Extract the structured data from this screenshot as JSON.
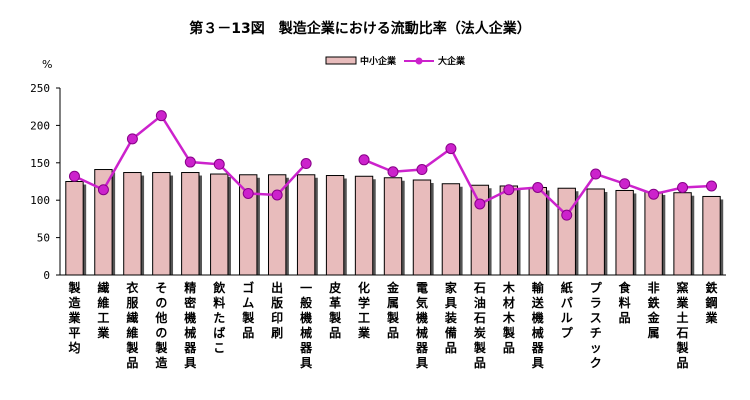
{
  "chart_data": {
    "type": "bar",
    "title": "第３－13図　製造企業における流動比率（法人企業）",
    "ylabel": "%",
    "ylim": [
      0,
      250
    ],
    "yticks": [
      0,
      50,
      100,
      150,
      200,
      250
    ],
    "legend_position": "top-right",
    "grid": false,
    "categories": [
      "製造業平均",
      "繊維工業",
      "衣服繊維製品",
      "その他の製造",
      "精密機械器具",
      "飲料たばこ",
      "ゴム製品",
      "出版印刷",
      "一般機械器具",
      "皮革製品",
      "化学工業",
      "金属製品",
      "電気機械器具",
      "家具装備品",
      "石油石炭製品",
      "木材木製品",
      "輸送機械器具",
      "紙パルプ",
      "プラスチック",
      "食料品",
      "非鉄金属",
      "窯業土石製品",
      "鉄鋼業"
    ],
    "series": [
      {
        "name": "中小企業",
        "type": "bar",
        "color": "#e8bcbc",
        "values": [
          125,
          141,
          137,
          137,
          137,
          135,
          134,
          134,
          134,
          133,
          132,
          130,
          127,
          122,
          120,
          119,
          117,
          116,
          115,
          113,
          111,
          110,
          105
        ]
      },
      {
        "name": "大企業",
        "type": "line",
        "color": "#cc22cc",
        "values": [
          132,
          114,
          182,
          213,
          151,
          148,
          109,
          107,
          149,
          null,
          154,
          138,
          141,
          169,
          95,
          114,
          117,
          80,
          135,
          122,
          108,
          117,
          119
        ]
      }
    ]
  }
}
